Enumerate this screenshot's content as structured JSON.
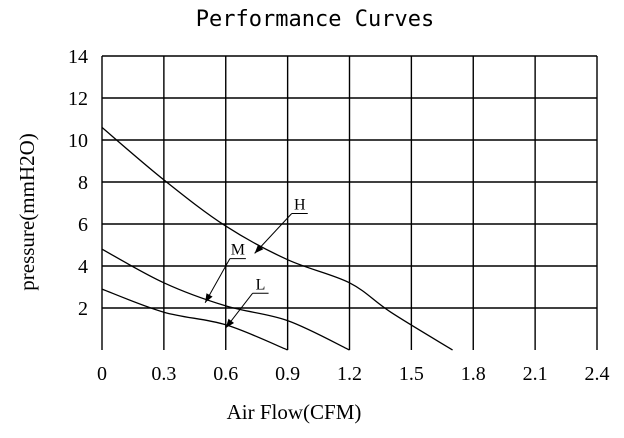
{
  "chart_data": {
    "type": "line",
    "title": "Performance Curves",
    "xlabel": "Air Flow(CFM)",
    "ylabel": "pressure(mmH2O)",
    "xlim": [
      0,
      2.4
    ],
    "ylim": [
      0,
      14
    ],
    "grid": true,
    "x_ticks": [
      "0",
      "0.3",
      "0.6",
      "0.9",
      "1.2",
      "1.5",
      "1.8",
      "2.1",
      "2.4"
    ],
    "y_ticks": [
      "2",
      "4",
      "6",
      "8",
      "10",
      "12",
      "14"
    ],
    "series": [
      {
        "name": "H",
        "points": [
          [
            0,
            10.6
          ],
          [
            0.3,
            8.1
          ],
          [
            0.6,
            5.9
          ],
          [
            0.9,
            4.3
          ],
          [
            1.2,
            3.2
          ],
          [
            1.4,
            1.8
          ],
          [
            1.7,
            0
          ]
        ]
      },
      {
        "name": "M",
        "points": [
          [
            0,
            4.8
          ],
          [
            0.3,
            3.2
          ],
          [
            0.6,
            2.1
          ],
          [
            0.9,
            1.4
          ],
          [
            1.2,
            0
          ]
        ]
      },
      {
        "name": "L",
        "points": [
          [
            0,
            2.9
          ],
          [
            0.3,
            1.8
          ],
          [
            0.6,
            1.2
          ],
          [
            0.9,
            0
          ]
        ]
      }
    ]
  }
}
